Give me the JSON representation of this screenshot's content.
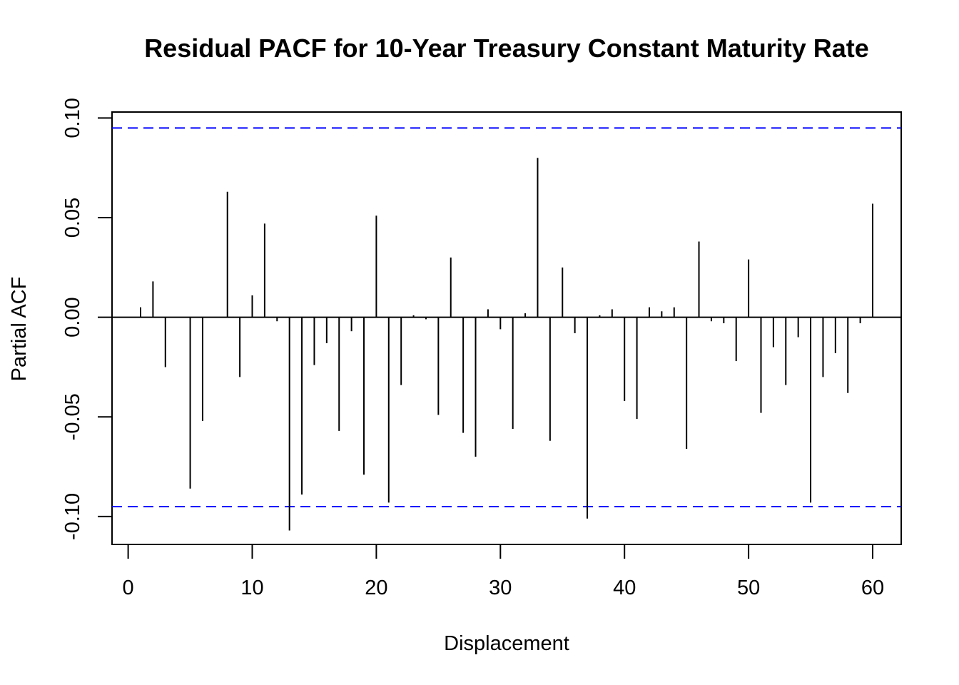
{
  "chart_data": {
    "type": "bar",
    "title": "Residual PACF for 10-Year Treasury Constant Maturity Rate",
    "xlabel": "Displacement",
    "ylabel": "Partial ACF",
    "xlim": [
      -1.3,
      62.3
    ],
    "ylim": [
      -0.114,
      0.103
    ],
    "x_ticks": [
      0,
      10,
      20,
      30,
      40,
      50,
      60
    ],
    "x_tick_labels": [
      "0",
      "10",
      "20",
      "30",
      "40",
      "50",
      "60"
    ],
    "y_ticks": [
      -0.1,
      -0.05,
      0.0,
      0.05,
      0.1
    ],
    "y_tick_labels": [
      "-0.10",
      "-0.05",
      "0.00",
      "0.05",
      "0.10"
    ],
    "confidence_bound": 0.095,
    "grid": false,
    "series": [
      {
        "lags": [
          1,
          2,
          3,
          4,
          5,
          6,
          7,
          8,
          9,
          10,
          11,
          12,
          13,
          14,
          15,
          16,
          17,
          18,
          19,
          20,
          21,
          22,
          23,
          24,
          25,
          26,
          27,
          28,
          29,
          30,
          31,
          32,
          33,
          34,
          35,
          36,
          37,
          38,
          39,
          40,
          41,
          42,
          43,
          44,
          45,
          46,
          47,
          48,
          49,
          50,
          51,
          52,
          53,
          54,
          55,
          56,
          57,
          58,
          59,
          60
        ],
        "values": [
          0.005,
          0.018,
          -0.025,
          0.0,
          -0.086,
          -0.052,
          0.0,
          0.063,
          -0.03,
          0.011,
          0.047,
          -0.002,
          -0.107,
          -0.089,
          -0.024,
          -0.013,
          -0.057,
          -0.007,
          -0.079,
          0.051,
          -0.093,
          -0.034,
          0.001,
          -0.001,
          -0.049,
          0.03,
          -0.058,
          -0.07,
          0.004,
          -0.006,
          -0.056,
          0.002,
          0.08,
          -0.062,
          0.025,
          -0.008,
          -0.101,
          0.001,
          0.004,
          -0.042,
          -0.051,
          0.005,
          0.003,
          0.005,
          -0.066,
          0.038,
          -0.002,
          -0.003,
          -0.022,
          0.029,
          -0.048,
          -0.015,
          -0.034,
          -0.01,
          -0.093,
          -0.03,
          -0.018,
          -0.038,
          -0.003,
          0.057
        ]
      }
    ],
    "colors": {
      "spike": "#000000",
      "zero_line": "#000000",
      "confidence_line": "#0000ff",
      "frame": "#000000"
    }
  }
}
